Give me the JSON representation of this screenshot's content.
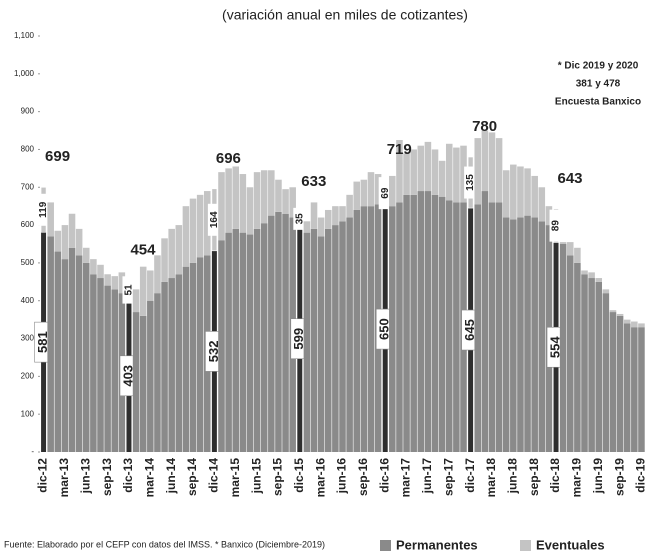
{
  "chart_data": {
    "type": "stacked_bar",
    "title": "(variación anual en miles de cotizantes)",
    "note": [
      "* Dic 2019 y 2020",
      "381 y 478",
      "Encuesta Banxico"
    ],
    "source": "Fuente: Elaborado por el CEFP con datos del IMSS. * Banxico (Diciembre-2019)",
    "categories": [
      "dic-12",
      null,
      null,
      "mar-13",
      null,
      null,
      "jun-13",
      null,
      null,
      "sep-13",
      null,
      null,
      "dic-13",
      null,
      null,
      "mar-14",
      null,
      null,
      "jun-14",
      null,
      null,
      "sep-14",
      null,
      null,
      "dic-14",
      null,
      null,
      "mar-15",
      null,
      null,
      "jun-15",
      null,
      null,
      "sep-15",
      null,
      null,
      "dic-15",
      null,
      null,
      "mar-16",
      null,
      null,
      "jun-16",
      null,
      null,
      "sep-16",
      null,
      null,
      "dic-16",
      null,
      null,
      "mar-17",
      null,
      null,
      "jun-17",
      null,
      null,
      "sep-17",
      null,
      null,
      "dic-17",
      null,
      null,
      "mar-18",
      null,
      null,
      "jun-18",
      null,
      null,
      "sep-18",
      null,
      null,
      "dic-18",
      null,
      null,
      "mar-19",
      null,
      null,
      "jun-19",
      null,
      null,
      "sep-19",
      null,
      null,
      "dic-19"
    ],
    "series": [
      {
        "name": "Permanentes",
        "color": "#8a8a8a",
        "values": [
          581,
          570,
          530,
          510,
          540,
          520,
          500,
          470,
          460,
          440,
          430,
          420,
          403,
          370,
          360,
          400,
          420,
          450,
          460,
          470,
          490,
          500,
          515,
          520,
          532,
          560,
          580,
          590,
          580,
          575,
          590,
          605,
          625,
          635,
          630,
          620,
          599,
          580,
          590,
          570,
          590,
          600,
          610,
          620,
          640,
          650,
          650,
          655,
          650,
          650,
          660,
          680,
          680,
          690,
          690,
          680,
          675,
          665,
          660,
          660,
          645,
          655,
          690,
          660,
          660,
          620,
          615,
          620,
          625,
          620,
          610,
          600,
          554,
          550,
          520,
          500,
          470,
          460,
          450,
          420,
          370,
          360,
          340,
          330,
          330
        ],
        "value_labels": [
          "581",
          null,
          null,
          null,
          null,
          null,
          null,
          null,
          null,
          null,
          null,
          null,
          "403",
          null,
          null,
          null,
          null,
          null,
          null,
          null,
          null,
          null,
          null,
          null,
          "532",
          null,
          null,
          null,
          null,
          null,
          null,
          null,
          null,
          null,
          null,
          null,
          "599",
          null,
          null,
          null,
          null,
          null,
          null,
          null,
          null,
          null,
          null,
          null,
          "650",
          null,
          null,
          null,
          null,
          null,
          null,
          null,
          null,
          null,
          null,
          null,
          "645",
          null,
          null,
          null,
          null,
          null,
          null,
          null,
          null,
          null,
          null,
          null,
          "554",
          null,
          null,
          null,
          null,
          null,
          null,
          null,
          null,
          null,
          null,
          null,
          null
        ]
      },
      {
        "name": "Eventuales",
        "color": "#c4c4c4",
        "values": [
          119,
          90,
          55,
          90,
          90,
          70,
          40,
          40,
          35,
          30,
          35,
          55,
          51,
          60,
          130,
          80,
          100,
          115,
          130,
          130,
          160,
          170,
          165,
          170,
          164,
          180,
          170,
          165,
          155,
          125,
          150,
          140,
          120,
          85,
          65,
          80,
          35,
          30,
          70,
          50,
          50,
          50,
          40,
          60,
          75,
          70,
          90,
          80,
          69,
          80,
          165,
          110,
          120,
          120,
          130,
          120,
          95,
          150,
          145,
          150,
          135,
          175,
          160,
          185,
          170,
          125,
          145,
          135,
          125,
          110,
          90,
          50,
          89,
          5,
          35,
          40,
          10,
          15,
          10,
          10,
          5,
          5,
          10,
          15,
          10
        ],
        "value_labels": [
          "119",
          null,
          null,
          null,
          null,
          null,
          null,
          null,
          null,
          null,
          null,
          null,
          "51",
          null,
          null,
          null,
          null,
          null,
          null,
          null,
          null,
          null,
          null,
          null,
          "164",
          null,
          null,
          null,
          null,
          null,
          null,
          null,
          null,
          null,
          null,
          null,
          "35",
          null,
          null,
          null,
          null,
          null,
          null,
          null,
          null,
          null,
          null,
          null,
          "69",
          null,
          null,
          null,
          null,
          null,
          null,
          null,
          null,
          null,
          null,
          null,
          "135",
          null,
          null,
          null,
          null,
          null,
          null,
          null,
          null,
          null,
          null,
          null,
          "89",
          null,
          null,
          null,
          null,
          null,
          null,
          null,
          null,
          null,
          null,
          null,
          null
        ]
      }
    ],
    "annotations": [
      {
        "text": "699",
        "category": "dic-12"
      },
      {
        "text": "454",
        "category": "dic-13"
      },
      {
        "text": "696",
        "category": "dic-14"
      },
      {
        "text": "633",
        "category": "dic-15"
      },
      {
        "text": "719",
        "category": "dic-16"
      },
      {
        "text": "780",
        "category": "dic-17"
      },
      {
        "text": "643",
        "category": "dic-18"
      }
    ],
    "ylim": [
      0,
      1100
    ],
    "yticks": [
      {
        "value": 0,
        "label": "-"
      },
      100,
      200,
      300,
      400,
      500,
      600,
      700,
      800,
      900,
      {
        "value": 1000,
        "label": "1,000"
      },
      {
        "value": 1100,
        "label": "1,100"
      }
    ],
    "legend": "bottom-right"
  }
}
